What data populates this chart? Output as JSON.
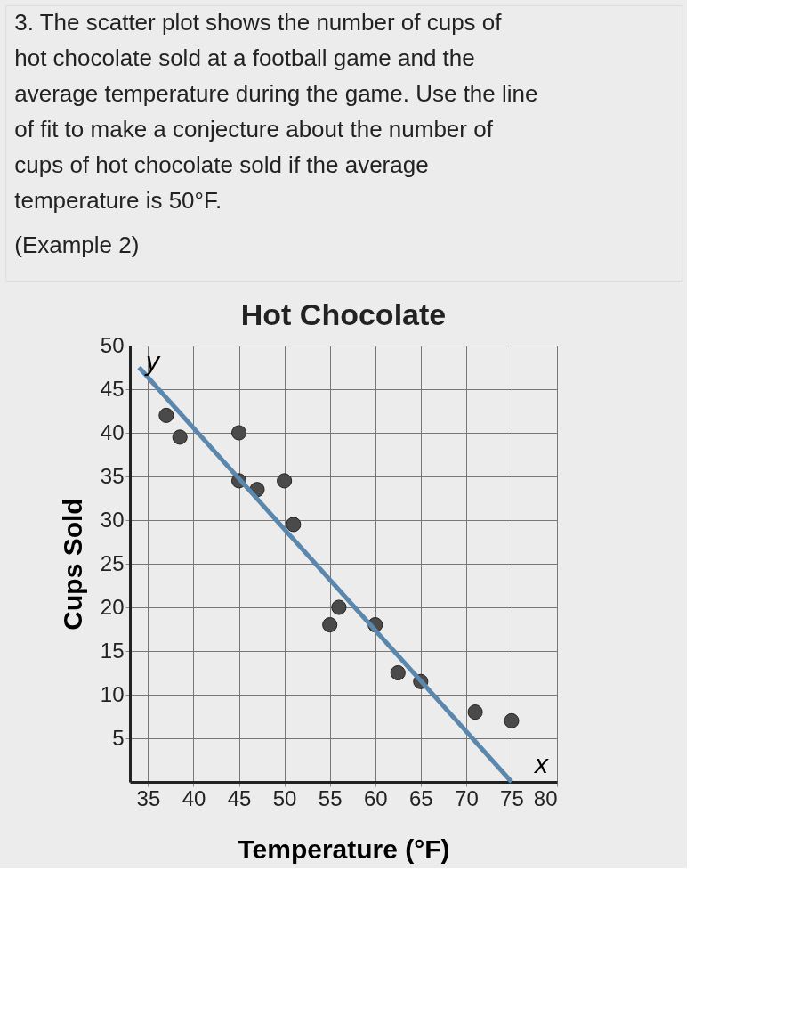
{
  "chart_data": {
    "type": "scatter",
    "title": "Hot Chocolate",
    "xlabel": "Temperature (°F)",
    "ylabel": "Cups Sold",
    "annotations": [
      "3. The scatter plot shows the number of cups of hot chocolate sold at a football game and the average temperature during the game. Use the line of fit to make a conjecture about the number of cups of hot chocolate sold if the average temperature is 50°F.",
      "(Example 2)",
      "y",
      "x"
    ],
    "xlim": [
      33,
      80
    ],
    "xticks": [
      35,
      40,
      45,
      50,
      55,
      60,
      65,
      70,
      75,
      80
    ],
    "ylim": [
      0,
      50
    ],
    "yticks": [
      5,
      10,
      15,
      20,
      25,
      30,
      35,
      40,
      45,
      50
    ],
    "grid": true,
    "marker": "circle",
    "series": [
      {
        "color": "#4a4a4a",
        "x": [
          37,
          38.5,
          45,
          45,
          47,
          50,
          51,
          55,
          56,
          60,
          62.5,
          65,
          71,
          75
        ],
        "values": [
          42,
          39.5,
          40,
          34.5,
          33.5,
          34.5,
          29.5,
          18,
          20,
          18,
          12.5,
          11.5,
          8,
          7
        ]
      },
      {
        "type": "line",
        "color": "#5b87ad",
        "line_style": "solid",
        "marker": "none",
        "x": [
          34,
          75
        ],
        "values": [
          47.5,
          0
        ]
      }
    ]
  }
}
